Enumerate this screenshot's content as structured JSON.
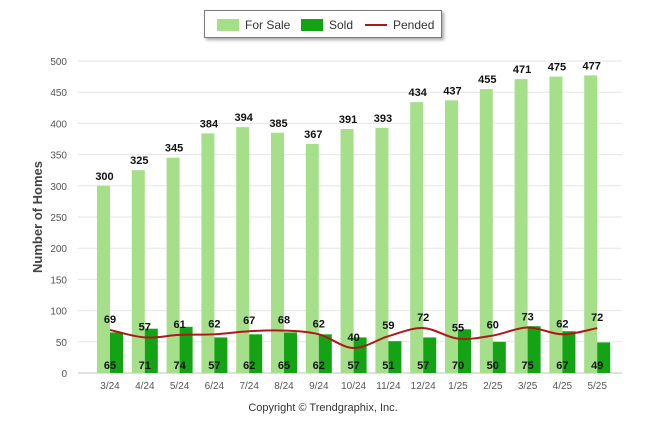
{
  "chart_data": {
    "type": "bar",
    "title": "",
    "xlabel": "",
    "ylabel": "Number of Homes",
    "ylim": [
      0,
      500
    ],
    "yticks": [
      0,
      50,
      100,
      150,
      200,
      250,
      300,
      350,
      400,
      450,
      500
    ],
    "grid": true,
    "legend_position": "top-center",
    "categories": [
      "3/24",
      "4/24",
      "5/24",
      "6/24",
      "7/24",
      "8/24",
      "9/24",
      "10/24",
      "11/24",
      "12/24",
      "1/25",
      "2/25",
      "3/25",
      "4/25",
      "5/25"
    ],
    "series": [
      {
        "name": "For Sale",
        "kind": "bar",
        "color": "#a6df8a",
        "values": [
          300,
          325,
          345,
          384,
          394,
          385,
          367,
          391,
          393,
          434,
          437,
          455,
          471,
          475,
          477
        ]
      },
      {
        "name": "Sold",
        "kind": "bar",
        "color": "#14a315",
        "values": [
          65,
          71,
          74,
          57,
          62,
          65,
          62,
          57,
          51,
          57,
          70,
          50,
          75,
          67,
          49
        ]
      },
      {
        "name": "Pended",
        "kind": "line",
        "color": "#b01818",
        "values": [
          69,
          57,
          61,
          62,
          67,
          68,
          62,
          40,
          59,
          72,
          55,
          60,
          73,
          62,
          72
        ]
      }
    ]
  },
  "footer": {
    "copyright": "Copyright © Trendgraphix, Inc."
  }
}
